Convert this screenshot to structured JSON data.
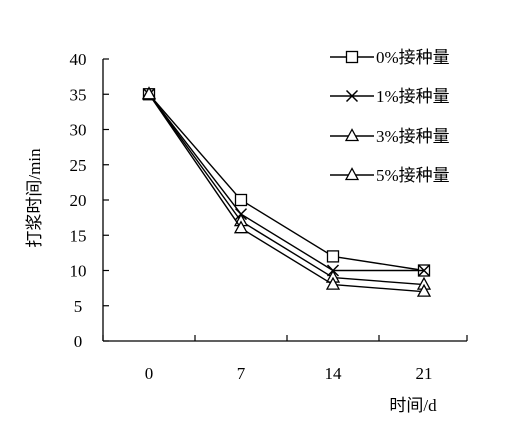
{
  "chart_data": {
    "type": "line",
    "title": "",
    "xlabel": "时间/d",
    "ylabel": "打浆时间/min",
    "categories": [
      "0",
      "7",
      "14",
      "21"
    ],
    "ylim": [
      0,
      40
    ],
    "yticks": [
      "0",
      "5",
      "10",
      "15",
      "20",
      "25",
      "30",
      "35",
      "40"
    ],
    "grid": false,
    "legend_position": "top-right",
    "series": [
      {
        "name": "0%接种量",
        "marker": "square",
        "values": [
          35,
          20,
          12,
          10
        ]
      },
      {
        "name": "1%接种量",
        "marker": "x",
        "values": [
          35,
          18,
          10,
          10
        ]
      },
      {
        "name": "3%接种量",
        "marker": "triangle",
        "values": [
          35,
          17,
          9,
          8
        ]
      },
      {
        "name": "5%接种量",
        "marker": "triangle",
        "values": [
          35,
          16,
          8,
          7
        ]
      }
    ],
    "colors": {
      "line": "#000000",
      "background": "#ffffff"
    }
  }
}
